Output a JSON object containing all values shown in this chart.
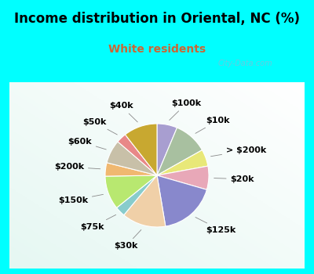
{
  "title": "Income distribution in Oriental, NC (%)",
  "subtitle": "White residents",
  "bg_cyan": "#00FFFF",
  "bg_chart_light": "#e8f5ee",
  "subtitle_color": "#cc6633",
  "labels": [
    "$100k",
    "$10k",
    "> $200k",
    "$20k",
    "$125k",
    "$30k",
    "$75k",
    "$150k",
    "$200k",
    "$60k",
    "$50k",
    "$40k"
  ],
  "values": [
    6,
    10,
    5,
    7,
    17,
    13,
    3,
    10,
    4,
    7,
    3,
    10
  ],
  "colors": [
    "#a89ed0",
    "#a8c0a0",
    "#e8e878",
    "#e8a8b8",
    "#8888cc",
    "#f0d0a8",
    "#88cccc",
    "#b8e870",
    "#f0b870",
    "#c8c0a8",
    "#e88888",
    "#c8a830"
  ],
  "title_fontsize": 12,
  "subtitle_fontsize": 10,
  "label_fontsize": 8,
  "watermark": "City-Data.com"
}
